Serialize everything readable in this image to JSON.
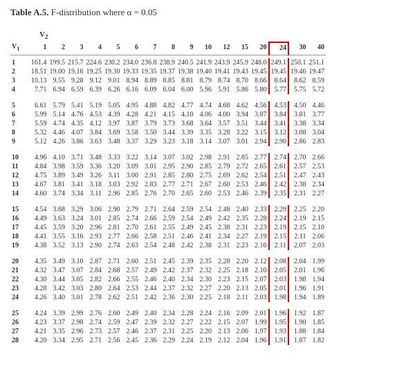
{
  "title_html": "<b>Table A.5.</b> F-distribution where α = 0.05",
  "v1_label": "V<sub>1</sub>",
  "v2_label": "V<sub>2</sub>",
  "highlight_col_index": 13,
  "highlight_color": "#d00",
  "columns": [
    "1",
    "2",
    "3",
    "4",
    "5",
    "6",
    "7",
    "8",
    "9",
    "10",
    "12",
    "15",
    "20",
    "24",
    "30",
    "40"
  ],
  "groups": [
    {
      "rows": [
        {
          "v1": "1",
          "cells": [
            "161.4",
            "199.5",
            "215.7",
            "224.6",
            "230.2",
            "234.0",
            "236.8",
            "238.9",
            "240.5",
            "241.9",
            "243.9",
            "245.9",
            "248.0",
            "249.1",
            "250.1",
            "251.1"
          ]
        },
        {
          "v1": "2",
          "cells": [
            "18.51",
            "19.00",
            "19.16",
            "19.25",
            "19.30",
            "19.33",
            "19.35",
            "19.37",
            "19.38",
            "19.40",
            "19.41",
            "19.43",
            "19.45",
            "19.45",
            "19.46",
            "19.47"
          ]
        },
        {
          "v1": "3",
          "cells": [
            "10.13",
            "9.55",
            "9.28",
            "9.12",
            "9.01",
            "8.94",
            "8.89",
            "8.85",
            "8.81",
            "8.79",
            "8.74",
            "8.70",
            "8.66",
            "8.64",
            "8.62",
            "8.59"
          ]
        },
        {
          "v1": "4",
          "cells": [
            "7.71",
            "6.94",
            "6.59",
            "6.39",
            "6.26",
            "6.16",
            "6.09",
            "6.04",
            "6.00",
            "5.96",
            "5.91",
            "5.86",
            "5.80",
            "5.77",
            "5.75",
            "5.72"
          ]
        }
      ]
    },
    {
      "rows": [
        {
          "v1": "5",
          "cells": [
            "6.61",
            "5.79",
            "5.41",
            "5.19",
            "5.05",
            "4.95",
            "4.88",
            "4.82",
            "4.77",
            "4.74",
            "4.68",
            "4.62",
            "4.56",
            "4.53",
            "4.50",
            "4.46"
          ]
        },
        {
          "v1": "6",
          "cells": [
            "5.99",
            "5.14",
            "4.76",
            "4.53",
            "4.39",
            "4.28",
            "4.21",
            "4.15",
            "4.10",
            "4.06",
            "4.00",
            "3.94",
            "3.87",
            "3.84",
            "3.81",
            "3.77"
          ]
        },
        {
          "v1": "7",
          "cells": [
            "5.59",
            "4.74",
            "4.35",
            "4.12",
            "3.97",
            "3.87",
            "3.79",
            "3.73",
            "3.68",
            "3.64",
            "3.57",
            "3.51",
            "3.44",
            "3.41",
            "3.38",
            "3.34"
          ]
        },
        {
          "v1": "8",
          "cells": [
            "5.32",
            "4.46",
            "4.07",
            "3.84",
            "3.69",
            "3.58",
            "3.50",
            "3.44",
            "3.39",
            "3.35",
            "3.28",
            "3.22",
            "3.15",
            "3.12",
            "3.08",
            "3.04"
          ]
        },
        {
          "v1": "9",
          "cells": [
            "5.12",
            "4.26",
            "3.86",
            "3.63",
            "3.48",
            "3.37",
            "3.29",
            "3.23",
            "3.18",
            "3.14",
            "3.07",
            "3.01",
            "2.94",
            "2.90",
            "2.86",
            "2.83"
          ]
        }
      ]
    },
    {
      "rows": [
        {
          "v1": "10",
          "cells": [
            "4.96",
            "4.10",
            "3.71",
            "3.48",
            "3.33",
            "3.22",
            "3.14",
            "3.07",
            "3.02",
            "2.98",
            "2.91",
            "2.85",
            "2.77",
            "2.74",
            "2.70",
            "2.66"
          ]
        },
        {
          "v1": "11",
          "cells": [
            "4.84",
            "3.98",
            "3.59",
            "3.36",
            "3.20",
            "3.09",
            "3.01",
            "2.95",
            "2.90",
            "2.85",
            "2.79",
            "2.72",
            "2.65",
            "2.61",
            "2.57",
            "2.53"
          ]
        },
        {
          "v1": "12",
          "cells": [
            "4.75",
            "3.89",
            "3.49",
            "3.26",
            "3.11",
            "3.00",
            "2.91",
            "2.85",
            "2.80",
            "2.75",
            "2.69",
            "2.62",
            "2.54",
            "2.51",
            "2.47",
            "2.43"
          ]
        },
        {
          "v1": "13",
          "cells": [
            "4.67",
            "3.81",
            "3.41",
            "3.18",
            "3.03",
            "2.92",
            "2.83",
            "2.77",
            "2.71",
            "2.67",
            "2.60",
            "2.53",
            "2.46",
            "2.42",
            "2.38",
            "2.34"
          ]
        },
        {
          "v1": "14",
          "cells": [
            "4.60",
            "3.74",
            "3.34",
            "3.11",
            "2.96",
            "2.85",
            "2.76",
            "2.70",
            "2.65",
            "2.60",
            "2.53",
            "2.46",
            "2.39",
            "2.35",
            "2.31",
            "2.27"
          ]
        }
      ]
    },
    {
      "rows": [
        {
          "v1": "15",
          "cells": [
            "4.54",
            "3.68",
            "3.29",
            "3.06",
            "2.90",
            "2.79",
            "2.71",
            "2.64",
            "2.59",
            "2.54",
            "2.48",
            "2.40",
            "2.33",
            "2.29",
            "2.25",
            "2.20"
          ]
        },
        {
          "v1": "16",
          "cells": [
            "4.49",
            "3.63",
            "3.24",
            "3.01",
            "2.85",
            "2.74",
            "2.66",
            "2.59",
            "2.54",
            "2.49",
            "2.42",
            "2.35",
            "2.28",
            "2.24",
            "2.19",
            "2.15"
          ]
        },
        {
          "v1": "17",
          "cells": [
            "4.45",
            "3.59",
            "3.20",
            "2.96",
            "2.81",
            "2.70",
            "2.61",
            "2.55",
            "2.49",
            "2.45",
            "2.38",
            "2.31",
            "2.23",
            "2.19",
            "2.15",
            "2.10"
          ]
        },
        {
          "v1": "18",
          "cells": [
            "4.41",
            "3.55",
            "3.16",
            "2.93",
            "2.77",
            "2.66",
            "2.58",
            "2.51",
            "2.46",
            "2.41",
            "2.34",
            "2.27",
            "2.19",
            "2.15",
            "2.11",
            "2.06"
          ]
        },
        {
          "v1": "19",
          "cells": [
            "4.38",
            "3.52",
            "3.13",
            "2.90",
            "2.74",
            "2.63",
            "2.54",
            "2.48",
            "2.42",
            "2.38",
            "2.31",
            "2.23",
            "2.16",
            "2.11",
            "2.07",
            "2.03"
          ]
        }
      ]
    },
    {
      "rows": [
        {
          "v1": "20",
          "cells": [
            "4.35",
            "3.49",
            "3.10",
            "2.87",
            "2.71",
            "2.60",
            "2.51",
            "2.45",
            "2.39",
            "2.35",
            "2.28",
            "2.20",
            "2.12",
            "2.08",
            "2.04",
            "1.99"
          ]
        },
        {
          "v1": "21",
          "cells": [
            "4.32",
            "3.47",
            "3.07",
            "2.84",
            "2.68",
            "2.57",
            "2.49",
            "2.42",
            "2.37",
            "2.32",
            "2.25",
            "2.18",
            "2.10",
            "2.05",
            "2.01",
            "1.96"
          ]
        },
        {
          "v1": "22",
          "cells": [
            "4.30",
            "3.44",
            "3.05",
            "2.82",
            "2.66",
            "2.55",
            "2.46",
            "2.40",
            "2.34",
            "2.30",
            "2.23",
            "2.15",
            "2.07",
            "2.03",
            "1.98",
            "1.94"
          ]
        },
        {
          "v1": "23",
          "cells": [
            "4.28",
            "3.42",
            "3.03",
            "2.80",
            "2.64",
            "2.53",
            "2.44",
            "2.37",
            "2.32",
            "2.27",
            "2.20",
            "2.13",
            "2.05",
            "2.01",
            "1.96",
            "1.91"
          ]
        },
        {
          "v1": "24",
          "cells": [
            "4.26",
            "3.40",
            "3.01",
            "2.78",
            "2.62",
            "2.51",
            "2.42",
            "2.36",
            "2.30",
            "2.25",
            "2.18",
            "2.11",
            "2.03",
            "1.98",
            "1.94",
            "1.89"
          ]
        }
      ]
    },
    {
      "rows": [
        {
          "v1": "25",
          "cells": [
            "4.24",
            "3.39",
            "2.99",
            "2.76",
            "2.60",
            "2.49",
            "2.40",
            "2.34",
            "2.28",
            "2.24",
            "2.16",
            "2.09",
            "2.01",
            "1.96",
            "1.92",
            "1.87"
          ]
        },
        {
          "v1": "26",
          "cells": [
            "4.23",
            "3.37",
            "2.98",
            "2.74",
            "2.59",
            "2.47",
            "2.39",
            "2.32",
            "2.27",
            "2.22",
            "2.15",
            "2.07",
            "1.99",
            "1.95",
            "1.90",
            "1.85"
          ]
        },
        {
          "v1": "27",
          "cells": [
            "4.21",
            "3.35",
            "2.96",
            "2.73",
            "2.57",
            "2.46",
            "2.37",
            "2.31",
            "2.25",
            "2.20",
            "2.13",
            "2.06",
            "1.97",
            "1.93",
            "1.88",
            "1.84"
          ]
        },
        {
          "v1": "28",
          "cells": [
            "4.20",
            "3.34",
            "2.95",
            "2.71",
            "2.56",
            "2.45",
            "2.36",
            "2.29",
            "2.24",
            "2.19",
            "2.12",
            "2.04",
            "1.96",
            "1.91",
            "1.87",
            "1.82"
          ]
        }
      ]
    }
  ]
}
